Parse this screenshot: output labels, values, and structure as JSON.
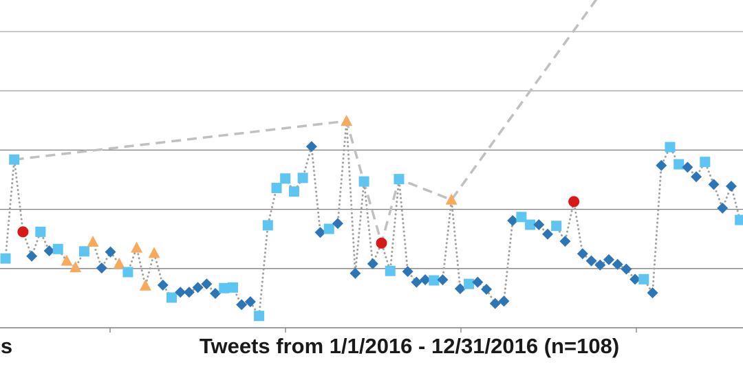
{
  "chart_data": {
    "type": "scatter",
    "title": "",
    "xlabel": "Tweets from 1/1/2016 - 12/31/2016 (n=108)",
    "xlabel_prev_fragment": "ns",
    "ylabel": "",
    "y_units": "gridline steps (axis values not visible)",
    "ylim": [
      0,
      5
    ],
    "grid": true,
    "colors": {
      "diamond": "#2e75b6",
      "square": "#5ec4f2",
      "triangle": "#f7a95e",
      "circle": "#d7191c",
      "dotted": "#a0a0a0",
      "dashed": "#c0c0c0",
      "grid_light": "#a6a6a6",
      "grid_dark": "#7f7f7f"
    },
    "points": [
      [
        "square",
        1.17
      ],
      [
        "square",
        2.84
      ],
      [
        "circle",
        1.62
      ],
      [
        "diamond",
        1.21
      ],
      [
        "square",
        1.62
      ],
      [
        "diamond",
        1.3
      ],
      [
        "square",
        1.33
      ],
      [
        "triangle",
        1.13
      ],
      [
        "triangle",
        1.02
      ],
      [
        "square",
        1.29
      ],
      [
        "triangle",
        1.45
      ],
      [
        "diamond",
        1.01
      ],
      [
        "diamond",
        1.28
      ],
      [
        "triangle",
        1.08
      ],
      [
        "square",
        0.94
      ],
      [
        "triangle",
        1.35
      ],
      [
        "triangle",
        0.71
      ],
      [
        "triangle",
        1.26
      ],
      [
        "diamond",
        0.72
      ],
      [
        "square",
        0.51
      ],
      [
        "diamond",
        0.6
      ],
      [
        "diamond",
        0.6
      ],
      [
        "diamond",
        0.68
      ],
      [
        "diamond",
        0.74
      ],
      [
        "diamond",
        0.58
      ],
      [
        "square",
        0.67
      ],
      [
        "square",
        0.68
      ],
      [
        "diamond",
        0.39
      ],
      [
        "diamond",
        0.44
      ],
      [
        "square",
        0.2
      ],
      [
        "square",
        1.73
      ],
      [
        "square",
        2.36
      ],
      [
        "square",
        2.52
      ],
      [
        "square",
        2.3
      ],
      [
        "square",
        2.53
      ],
      [
        "diamond",
        3.06
      ],
      [
        "diamond",
        1.61
      ],
      [
        "square",
        1.67
      ],
      [
        "diamond",
        1.76
      ],
      [
        "triangle",
        3.49
      ],
      [
        "diamond",
        0.92
      ],
      [
        "square",
        2.47
      ],
      [
        "diamond",
        1.08
      ],
      [
        "circle",
        1.43
      ],
      [
        "square",
        0.96
      ],
      [
        "square",
        2.51
      ],
      [
        "diamond",
        0.95
      ],
      [
        "diamond",
        0.77
      ],
      [
        "diamond",
        0.81
      ],
      [
        "square",
        0.8
      ],
      [
        "diamond",
        0.81
      ],
      [
        "triangle",
        2.16
      ],
      [
        "diamond",
        0.66
      ],
      [
        "square",
        0.74
      ],
      [
        "diamond",
        0.77
      ],
      [
        "diamond",
        0.65
      ],
      [
        "diamond",
        0.41
      ],
      [
        "diamond",
        0.45
      ],
      [
        "diamond",
        1.81
      ],
      [
        "square",
        1.87
      ],
      [
        "square",
        1.74
      ],
      [
        "diamond",
        1.74
      ],
      [
        "diamond",
        1.58
      ],
      [
        "square",
        1.72
      ],
      [
        "diamond",
        1.46
      ],
      [
        "circle",
        2.13
      ],
      [
        "diamond",
        1.25
      ],
      [
        "diamond",
        1.13
      ],
      [
        "diamond",
        1.06
      ],
      [
        "diamond",
        1.15
      ],
      [
        "diamond",
        1.07
      ],
      [
        "diamond",
        0.99
      ],
      [
        "diamond",
        0.82
      ],
      [
        "square",
        0.82
      ],
      [
        "diamond",
        0.59
      ],
      [
        "diamond",
        2.74
      ],
      [
        "square",
        3.05
      ],
      [
        "square",
        2.76
      ],
      [
        "diamond",
        2.71
      ],
      [
        "diamond",
        2.55
      ],
      [
        "square",
        2.8
      ],
      [
        "diamond",
        2.42
      ],
      [
        "diamond",
        2.02
      ],
      [
        "diamond",
        2.39
      ],
      [
        "square",
        1.82
      ]
    ],
    "trend_line": [
      [
        2,
        2.84
      ],
      [
        40,
        3.49
      ],
      [
        44,
        1.43
      ],
      [
        46,
        2.51
      ],
      [
        52,
        2.16
      ],
      [
        68.8,
        5.59
      ]
    ],
    "x_ticks_count": 4
  }
}
